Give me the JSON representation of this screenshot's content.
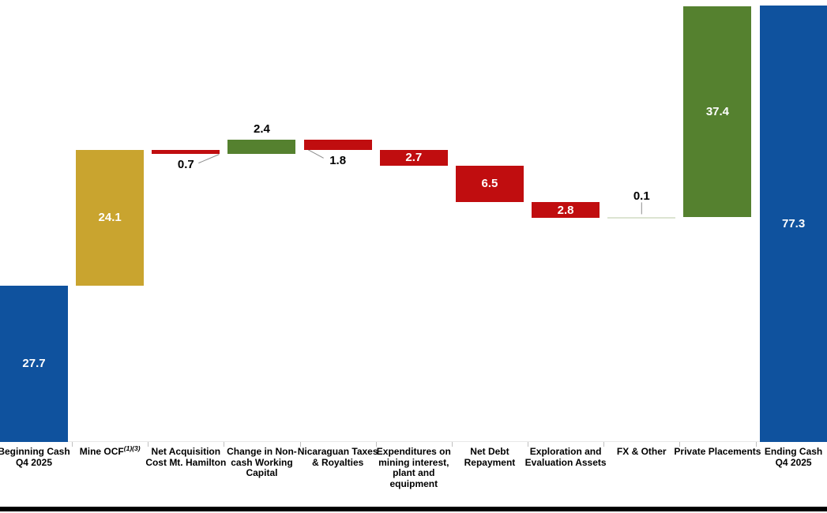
{
  "chart_data": {
    "type": "waterfall",
    "description": "Cash flow bridge from Beginning Cash Q4 2025 to Ending Cash Q4 2025, values in millions",
    "grid": false,
    "legend": false,
    "y_axis_visible": false,
    "baseline": 0,
    "colors": {
      "blue": "#0F529E",
      "gold": "#C9A42F",
      "red": "#C00D0F",
      "green": "#55812F",
      "fx": "#DCE4D2",
      "leader": "#8C8C8C",
      "tick": "#BFBFBF",
      "border_bottom": "#000000",
      "background": "#FFFFFF"
    },
    "categories": [
      {
        "label_lines": [
          "Beginning Cash",
          "Q4 2025"
        ],
        "value": 27.7,
        "display": "27.7",
        "kind": "total",
        "color": "blue",
        "value_label": "inside"
      },
      {
        "label_lines": [
          "Mine OCF"
        ],
        "label_sup": "(1)(3)",
        "value": 24.1,
        "display": "24.1",
        "kind": "increase",
        "color": "gold",
        "value_label": "inside"
      },
      {
        "label_lines": [
          "Net Acquisition",
          "Cost Mt. Hamilton"
        ],
        "value": -0.7,
        "display": "0.7",
        "kind": "decrease",
        "color": "red",
        "value_label": "below",
        "leader": "up-right"
      },
      {
        "label_lines": [
          "Change in Non-",
          "cash Working",
          "Capital"
        ],
        "value": 2.4,
        "display": "2.4",
        "kind": "increase",
        "color": "green",
        "value_label": "above"
      },
      {
        "label_lines": [
          "Nicaraguan Taxes",
          "& Royalties"
        ],
        "value": -1.8,
        "display": "1.8",
        "kind": "decrease",
        "color": "red",
        "value_label": "below",
        "leader": "down-right"
      },
      {
        "label_lines": [
          "Expenditures on",
          "mining interest,",
          "plant and",
          "equipment"
        ],
        "value": -2.7,
        "display": "2.7",
        "kind": "decrease",
        "color": "red",
        "value_label": "inside"
      },
      {
        "label_lines": [
          "Net Debt",
          "Repayment"
        ],
        "value": -6.5,
        "display": "6.5",
        "kind": "decrease",
        "color": "red",
        "value_label": "inside"
      },
      {
        "label_lines": [
          "Exploration and",
          "Evaluation Assets"
        ],
        "value": -2.8,
        "display": "2.8",
        "kind": "decrease",
        "color": "red",
        "value_label": "inside"
      },
      {
        "label_lines": [
          "FX & Other"
        ],
        "value": 0.1,
        "display": "0.1",
        "kind": "increase",
        "color": "fx",
        "value_label": "above-gap",
        "leader": "vertical"
      },
      {
        "label_lines": [
          "Private Placements"
        ],
        "value": 37.4,
        "display": "37.4",
        "kind": "increase",
        "color": "green",
        "value_label": "inside"
      },
      {
        "label_lines": [
          "Ending Cash",
          "Q4 2025"
        ],
        "value": 77.3,
        "display": "77.3",
        "kind": "total",
        "color": "blue",
        "value_label": "inside"
      }
    ],
    "running_totals": [
      27.7,
      51.8,
      51.1,
      53.5,
      51.7,
      49.0,
      42.5,
      39.7,
      39.8,
      77.2,
      77.3
    ]
  }
}
